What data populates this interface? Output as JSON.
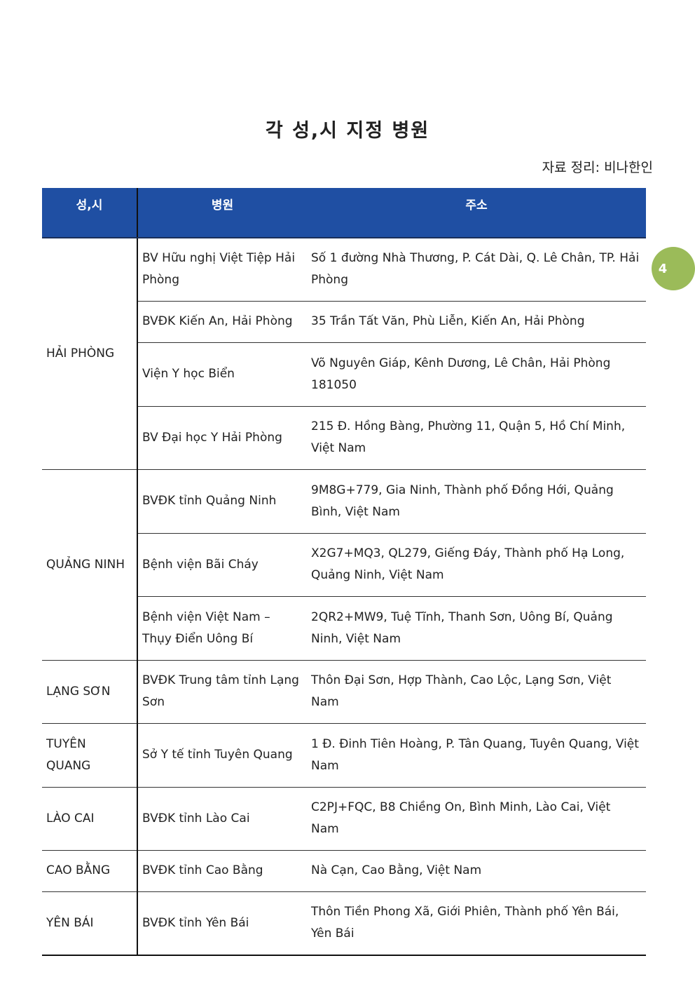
{
  "title": "각 성,시 지정 병원",
  "source": "자료 정리: 비나한인",
  "page_number": "4",
  "badge_color": "#9bbb59",
  "header_color": "#1f4fa3",
  "table": {
    "headers": [
      "성,시",
      "병원",
      "주소"
    ],
    "groups": [
      {
        "province": "HẢI PHÒNG",
        "rows": [
          {
            "hospital": "BV Hữu nghị Việt Tiệp Hải Phòng",
            "address": "Số 1 đường Nhà Thương, P. Cát Dài, Q. Lê Chân, TP. Hải Phòng"
          },
          {
            "hospital": "BVĐK Kiến An, Hải Phòng",
            "address": "35 Trần Tất Văn, Phù Liễn, Kiến An, Hải Phòng"
          },
          {
            "hospital": "Viện Y học Biển",
            "address": "Võ Nguyên Giáp, Kênh Dương, Lê Chân, Hải Phòng 181050"
          },
          {
            "hospital": "BV Đại học Y Hải Phòng",
            "address": "215 Đ. Hồng Bàng, Phường 11, Quận 5, Hồ Chí Minh, Việt Nam"
          }
        ]
      },
      {
        "province": "QUẢNG NINH",
        "rows": [
          {
            "hospital": "BVĐK tỉnh Quảng Ninh",
            "address": "9M8G+779, Gia Ninh, Thành phố Đồng Hới, Quảng Bình, Việt Nam"
          },
          {
            "hospital": "Bệnh viện Bãi Cháy",
            "address": "X2G7+MQ3, QL279, Giếng Đáy, Thành phố Hạ Long, Quảng Ninh, Việt Nam"
          },
          {
            "hospital": "Bệnh viện Việt Nam – Thụy Điển Uông Bí",
            "address": "2QR2+MW9, Tuệ Tĩnh, Thanh Sơn, Uông Bí, Quảng Ninh, Việt Nam"
          }
        ]
      },
      {
        "province": "LẠNG SƠN",
        "rows": [
          {
            "hospital": "BVĐK Trung tâm tỉnh Lạng Sơn",
            "address": "Thôn Đại Sơn, Hợp Thành, Cao Lộc, Lạng Sơn, Việt Nam"
          }
        ]
      },
      {
        "province": "TUYÊN QUANG",
        "rows": [
          {
            "hospital": "Sở Y tế tỉnh Tuyên Quang",
            "address": "1 Đ. Đinh Tiên Hoàng, P. Tân Quang, Tuyên Quang, Việt Nam"
          }
        ]
      },
      {
        "province": "LÀO CAI",
        "rows": [
          {
            "hospital": "BVĐK tỉnh Lào Cai",
            "address": "C2PJ+FQC, B8 Chiềng On, Bình Minh, Lào Cai, Việt Nam"
          }
        ]
      },
      {
        "province": "CAO BẰNG",
        "rows": [
          {
            "hospital": "BVĐK tỉnh Cao Bằng",
            "address": "Nà Cạn, Cao Bằng, Việt Nam"
          }
        ]
      },
      {
        "province": "YÊN BÁI",
        "rows": [
          {
            "hospital": "BVĐK tỉnh Yên Bái",
            "address": "Thôn Tiền Phong Xã, Giới Phiên, Thành phố Yên Bái, Yên Bái"
          }
        ]
      }
    ]
  }
}
